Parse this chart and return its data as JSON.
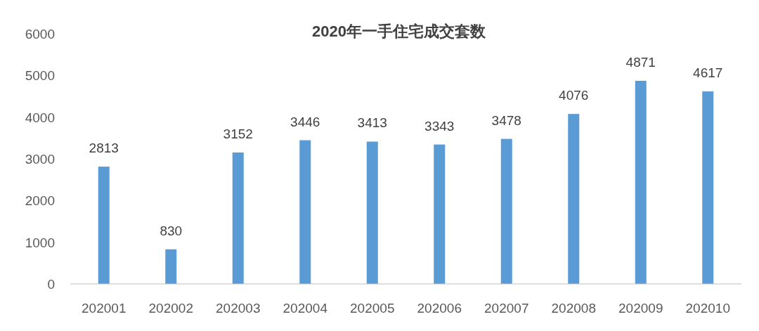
{
  "chart_data": {
    "type": "bar",
    "title": "2020年一手住宅成交套数",
    "categories": [
      "202001",
      "202002",
      "202003",
      "202004",
      "202005",
      "202006",
      "202007",
      "202008",
      "202009",
      "202010"
    ],
    "values": [
      2813,
      830,
      3152,
      3446,
      3413,
      3343,
      3478,
      4076,
      4871,
      4617
    ],
    "color": "#5b9bd5",
    "ylim": [
      0,
      6000
    ],
    "yticks": [
      0,
      1000,
      2000,
      3000,
      4000,
      5000,
      6000
    ],
    "grid": false,
    "data_labels": true
  }
}
